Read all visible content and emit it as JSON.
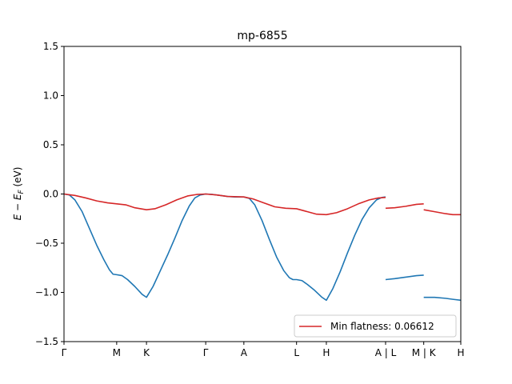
{
  "chart_data": {
    "type": "line",
    "title": "mp-6855",
    "ylabel_parts": {
      "base": "E − E",
      "sub": "F",
      "unit": " (eV)"
    },
    "ylim": [
      -1.5,
      1.5
    ],
    "xlim": [
      0,
      10.92
    ],
    "yticks": [
      -1.5,
      -1.0,
      -0.5,
      0.0,
      0.5,
      1.0,
      1.5
    ],
    "ytick_labels": [
      "−1.5",
      "−1.0",
      "−0.5",
      "0.0",
      "0.5",
      "1.0",
      "1.5"
    ],
    "kpoints": [
      {
        "label": "Γ",
        "x": 0
      },
      {
        "label": "M",
        "x": 1.45
      },
      {
        "label": "K",
        "x": 2.27
      },
      {
        "label": "Γ",
        "x": 3.9
      },
      {
        "label": "A",
        "x": 4.95
      },
      {
        "label": "L",
        "x": 6.4
      },
      {
        "label": "H",
        "x": 7.22
      },
      {
        "label": "A | L",
        "x": 8.85
      },
      {
        "label": "M | K",
        "x": 9.9
      },
      {
        "label": "H",
        "x": 10.92
      }
    ],
    "grid": false,
    "legend": {
      "placement": "lower-right",
      "label": "Min flatness: 0.06612"
    },
    "series": [
      {
        "color": "#1f77b4",
        "segments": [
          [
            [
              0,
              0.0
            ],
            [
              0.15,
              -0.01
            ],
            [
              0.3,
              -0.06
            ],
            [
              0.5,
              -0.18
            ],
            [
              0.7,
              -0.35
            ],
            [
              0.9,
              -0.52
            ],
            [
              1.1,
              -0.67
            ],
            [
              1.25,
              -0.77
            ],
            [
              1.35,
              -0.815
            ],
            [
              1.45,
              -0.82
            ],
            [
              1.6,
              -0.83
            ],
            [
              1.75,
              -0.87
            ],
            [
              1.95,
              -0.94
            ],
            [
              2.15,
              -1.02
            ],
            [
              2.27,
              -1.05
            ],
            [
              2.45,
              -0.94
            ],
            [
              2.65,
              -0.78
            ],
            [
              2.85,
              -0.62
            ],
            [
              3.05,
              -0.45
            ],
            [
              3.25,
              -0.27
            ],
            [
              3.45,
              -0.12
            ],
            [
              3.6,
              -0.04
            ],
            [
              3.75,
              -0.01
            ],
            [
              3.9,
              0.0
            ],
            [
              4.1,
              -0.005
            ],
            [
              4.3,
              -0.015
            ],
            [
              4.5,
              -0.025
            ],
            [
              4.7,
              -0.03
            ],
            [
              4.95,
              -0.03
            ],
            [
              5.1,
              -0.045
            ],
            [
              5.25,
              -0.11
            ],
            [
              5.45,
              -0.27
            ],
            [
              5.65,
              -0.46
            ],
            [
              5.85,
              -0.64
            ],
            [
              6.05,
              -0.78
            ],
            [
              6.2,
              -0.85
            ],
            [
              6.3,
              -0.87
            ],
            [
              6.4,
              -0.87
            ],
            [
              6.55,
              -0.88
            ],
            [
              6.7,
              -0.92
            ],
            [
              6.9,
              -0.98
            ],
            [
              7.1,
              -1.05
            ],
            [
              7.22,
              -1.08
            ],
            [
              7.4,
              -0.96
            ],
            [
              7.6,
              -0.79
            ],
            [
              7.8,
              -0.6
            ],
            [
              8.0,
              -0.42
            ],
            [
              8.2,
              -0.26
            ],
            [
              8.4,
              -0.14
            ],
            [
              8.6,
              -0.06
            ],
            [
              8.75,
              -0.035
            ],
            [
              8.85,
              -0.03
            ]
          ],
          [
            [
              8.85,
              -0.87
            ],
            [
              9.1,
              -0.86
            ],
            [
              9.4,
              -0.845
            ],
            [
              9.7,
              -0.83
            ],
            [
              9.9,
              -0.825
            ]
          ],
          [
            [
              9.9,
              -1.05
            ],
            [
              10.2,
              -1.05
            ],
            [
              10.5,
              -1.06
            ],
            [
              10.7,
              -1.07
            ],
            [
              10.92,
              -1.08
            ]
          ]
        ]
      },
      {
        "color": "#d62728",
        "segments": [
          [
            [
              0,
              0.0
            ],
            [
              0.3,
              -0.015
            ],
            [
              0.6,
              -0.04
            ],
            [
              0.9,
              -0.07
            ],
            [
              1.2,
              -0.09
            ],
            [
              1.45,
              -0.1
            ],
            [
              1.7,
              -0.11
            ],
            [
              1.95,
              -0.14
            ],
            [
              2.27,
              -0.16
            ],
            [
              2.5,
              -0.15
            ],
            [
              2.8,
              -0.11
            ],
            [
              3.1,
              -0.06
            ],
            [
              3.4,
              -0.02
            ],
            [
              3.65,
              -0.005
            ],
            [
              3.9,
              0.0
            ],
            [
              4.2,
              -0.01
            ],
            [
              4.5,
              -0.025
            ],
            [
              4.95,
              -0.03
            ],
            [
              5.2,
              -0.05
            ],
            [
              5.5,
              -0.09
            ],
            [
              5.8,
              -0.13
            ],
            [
              6.1,
              -0.145
            ],
            [
              6.4,
              -0.15
            ],
            [
              6.7,
              -0.18
            ],
            [
              6.95,
              -0.205
            ],
            [
              7.22,
              -0.21
            ],
            [
              7.5,
              -0.19
            ],
            [
              7.8,
              -0.15
            ],
            [
              8.1,
              -0.1
            ],
            [
              8.4,
              -0.06
            ],
            [
              8.65,
              -0.04
            ],
            [
              8.85,
              -0.035
            ]
          ],
          [
            [
              8.85,
              -0.145
            ],
            [
              9.1,
              -0.14
            ],
            [
              9.4,
              -0.125
            ],
            [
              9.7,
              -0.105
            ],
            [
              9.9,
              -0.1
            ]
          ],
          [
            [
              9.9,
              -0.16
            ],
            [
              10.2,
              -0.18
            ],
            [
              10.5,
              -0.2
            ],
            [
              10.7,
              -0.21
            ],
            [
              10.92,
              -0.21
            ]
          ]
        ]
      }
    ]
  }
}
